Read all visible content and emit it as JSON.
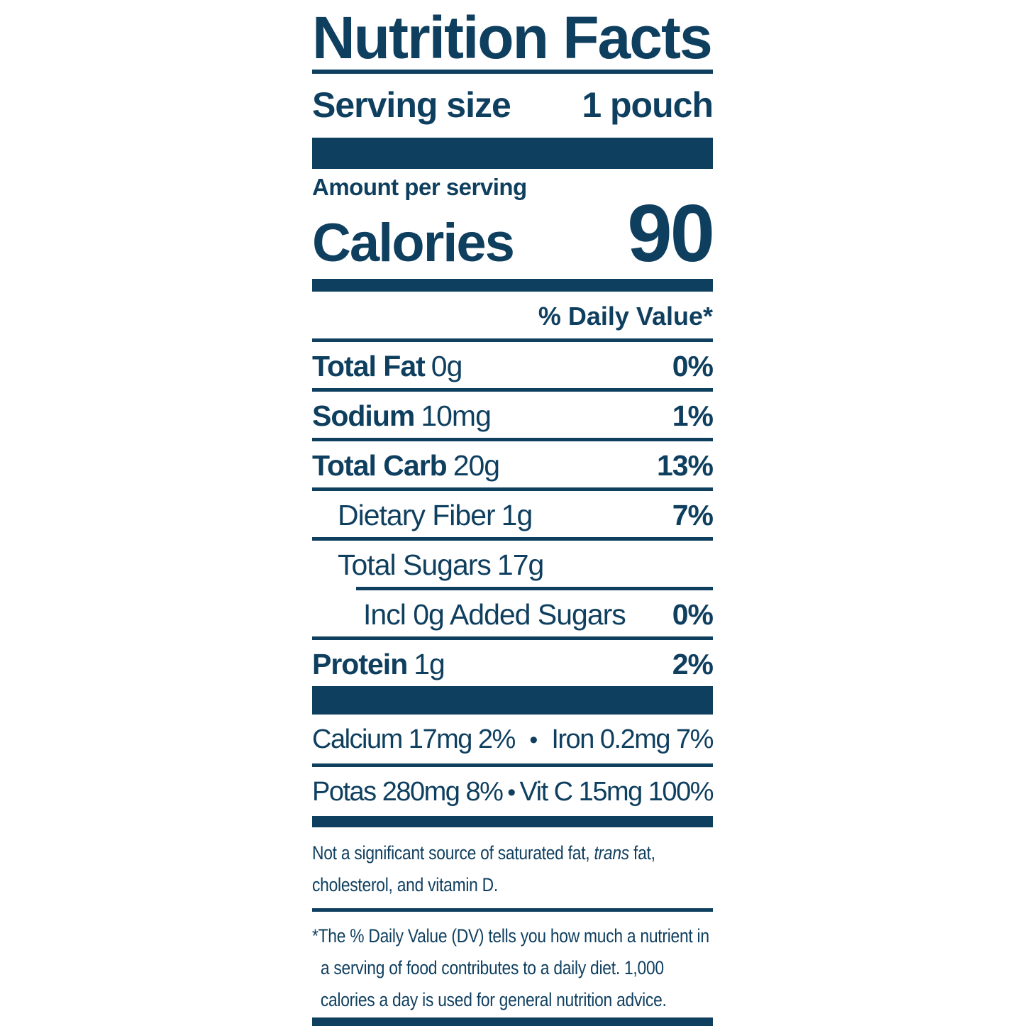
{
  "label": {
    "accent_color": "#0F3F5F",
    "title": "Nutrition Facts",
    "serving_size": {
      "label": "Serving size",
      "value": "1 pouch"
    },
    "amount_per_serving": "Amount per serving",
    "calories": {
      "label": "Calories",
      "value": "90"
    },
    "daily_value_header": "% Daily Value*",
    "nutrients": [
      {
        "name": "Total Fat",
        "amount": "0g",
        "dv": "0%"
      },
      {
        "name": "Sodium",
        "amount": "10mg",
        "dv": "1%"
      },
      {
        "name": "Total Carb",
        "amount": "20g",
        "dv": "13%"
      },
      {
        "name": "Dietary Fiber",
        "amount": "1g",
        "dv": "7%"
      },
      {
        "name": "Total Sugars",
        "amount": "17g",
        "dv": ""
      },
      {
        "name": "Incl 0g Added Sugars",
        "amount": "",
        "dv": "0%"
      },
      {
        "name": "Protein",
        "amount": "1g",
        "dv": "2%"
      }
    ],
    "micronutrients": {
      "bullet": "•",
      "rows": [
        {
          "left": "Calcium 17mg 2%",
          "right": "Iron 0.2mg 7%"
        },
        {
          "left": "Potas 280mg 8%",
          "right": "Vit C 15mg 100%"
        }
      ]
    },
    "footnotes": {
      "not_significant": {
        "pre": "Not a significant source of saturated fat, ",
        "italic": "trans",
        "post": " fat, cholesterol, and vitamin D."
      },
      "daily_value": "*The % Daily Value (DV) tells you how much a nutrient in a serving of food contributes to a daily diet. 1,000 calories a day is used for general nutrition advice."
    }
  }
}
